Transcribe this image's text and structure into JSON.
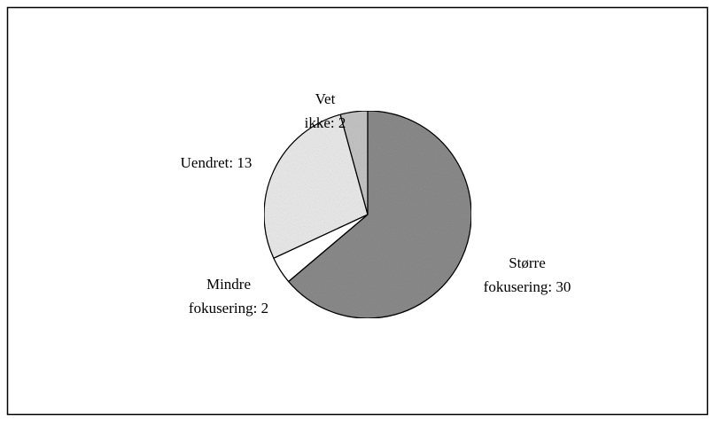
{
  "chart_data": {
    "type": "pie",
    "values": [
      30,
      2,
      13,
      2
    ],
    "value_labels": [
      "Større fokusering: 30",
      "Mindre fokusering: 2",
      "Uendret: 13",
      "Vet ikke: 2"
    ],
    "colors": [
      "#8c8c8c",
      "#ffffff",
      "#ececec",
      "#c6c6c6"
    ]
  }
}
